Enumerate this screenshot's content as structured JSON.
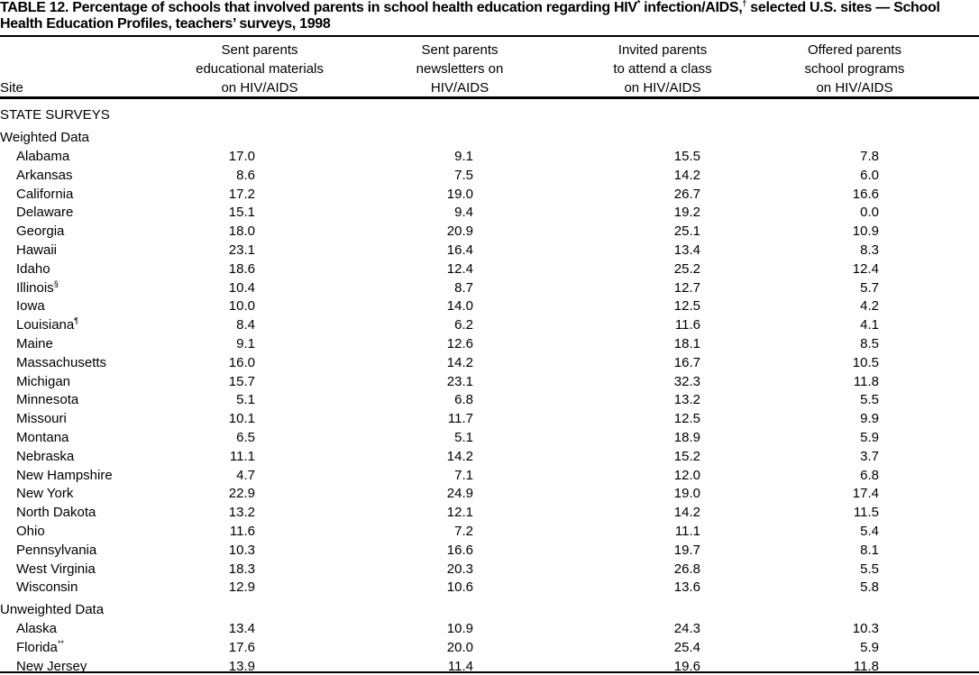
{
  "title": [
    "TABLE 12. Percentage of schools that involved parents in school health education regarding HIV",
    "*",
    " infection/AIDS,",
    "†",
    " selected U.S. sites — School Health Education Profiles, teachers’ surveys, 1998"
  ],
  "table": {
    "header": {
      "site": "Site",
      "columns": [
        [
          "Sent parents",
          "educational materials",
          "on HIV/AIDS"
        ],
        [
          "Sent parents",
          "newsletters on",
          "HIV/AIDS"
        ],
        [
          "Invited parents",
          "to attend a class",
          "on HIV/AIDS"
        ],
        [
          "Offered parents",
          "school programs",
          "on HIV/AIDS"
        ]
      ]
    },
    "section": "STATE SURVEYS",
    "groups": [
      {
        "label": "Weighted Data",
        "rows": [
          {
            "site": "Alabama",
            "values": [
              "17.0",
              "9.1",
              "15.5",
              "7.8"
            ]
          },
          {
            "site": "Arkansas",
            "values": [
              "8.6",
              "7.5",
              "14.2",
              "6.0"
            ]
          },
          {
            "site": "California",
            "values": [
              "17.2",
              "19.0",
              "26.7",
              "16.6"
            ]
          },
          {
            "site": "Delaware",
            "values": [
              "15.1",
              "9.4",
              "19.2",
              "0.0"
            ]
          },
          {
            "site": "Georgia",
            "values": [
              "18.0",
              "20.9",
              "25.1",
              "10.9"
            ]
          },
          {
            "site": "Hawaii",
            "values": [
              "23.1",
              "16.4",
              "13.4",
              "8.3"
            ]
          },
          {
            "site": "Idaho",
            "values": [
              "18.6",
              "12.4",
              "25.2",
              "12.4"
            ]
          },
          {
            "site": "Illinois",
            "note": "§",
            "values": [
              "10.4",
              "8.7",
              "12.7",
              "5.7"
            ]
          },
          {
            "site": "Iowa",
            "values": [
              "10.0",
              "14.0",
              "12.5",
              "4.2"
            ]
          },
          {
            "site": "Louisiana",
            "note": "¶",
            "values": [
              "8.4",
              "6.2",
              "11.6",
              "4.1"
            ]
          },
          {
            "site": "Maine",
            "values": [
              "9.1",
              "12.6",
              "18.1",
              "8.5"
            ]
          },
          {
            "site": "Massachusetts",
            "values": [
              "16.0",
              "14.2",
              "16.7",
              "10.5"
            ]
          },
          {
            "site": "Michigan",
            "values": [
              "15.7",
              "23.1",
              "32.3",
              "11.8"
            ]
          },
          {
            "site": "Minnesota",
            "values": [
              "5.1",
              "6.8",
              "13.2",
              "5.5"
            ]
          },
          {
            "site": "Missouri",
            "values": [
              "10.1",
              "11.7",
              "12.5",
              "9.9"
            ]
          },
          {
            "site": "Montana",
            "values": [
              "6.5",
              "5.1",
              "18.9",
              "5.9"
            ]
          },
          {
            "site": "Nebraska",
            "values": [
              "11.1",
              "14.2",
              "15.2",
              "3.7"
            ]
          },
          {
            "site": "New Hampshire",
            "values": [
              "4.7",
              "7.1",
              "12.0",
              "6.8"
            ]
          },
          {
            "site": "New York",
            "values": [
              "22.9",
              "24.9",
              "19.0",
              "17.4"
            ]
          },
          {
            "site": "North Dakota",
            "values": [
              "13.2",
              "12.1",
              "14.2",
              "11.5"
            ]
          },
          {
            "site": "Ohio",
            "values": [
              "11.6",
              "7.2",
              "11.1",
              "5.4"
            ]
          },
          {
            "site": "Pennsylvania",
            "values": [
              "10.3",
              "16.6",
              "19.7",
              "8.1"
            ]
          },
          {
            "site": "West Virginia",
            "values": [
              "18.3",
              "20.3",
              "26.8",
              "5.5"
            ]
          },
          {
            "site": "Wisconsin",
            "values": [
              "12.9",
              "10.6",
              "13.6",
              "5.8"
            ]
          }
        ]
      },
      {
        "label": "Unweighted Data",
        "rows": [
          {
            "site": "Alaska",
            "values": [
              "13.4",
              "10.9",
              "24.3",
              "10.3"
            ]
          },
          {
            "site": "Florida",
            "note": "**",
            "values": [
              "17.6",
              "20.0",
              "25.4",
              "5.9"
            ]
          },
          {
            "site": "New Jersey",
            "values": [
              "13.9",
              "11.4",
              "19.6",
              "11.8"
            ]
          }
        ]
      }
    ]
  }
}
